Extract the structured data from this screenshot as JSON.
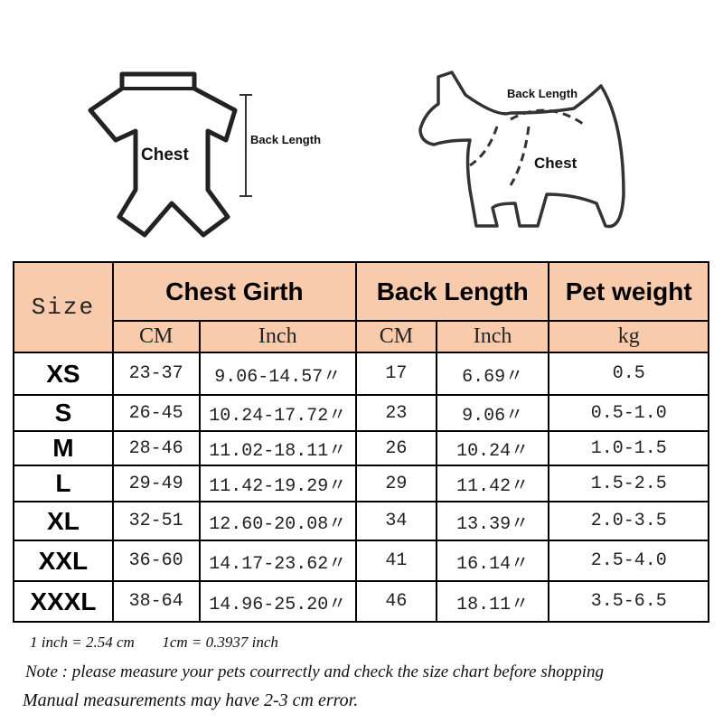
{
  "diagrams": {
    "garment": {
      "chest_label": "Chest",
      "back_length_label": "Back Length"
    },
    "dog": {
      "chest_label": "Chest",
      "back_length_label": "Back Length"
    }
  },
  "table": {
    "headers": {
      "size": "Size",
      "chest_girth": "Chest Girth",
      "back_length": "Back Length",
      "pet_weight": "Pet weight"
    },
    "units": {
      "chest_cm": "CM",
      "chest_inch": "Inch",
      "back_cm": "CM",
      "back_inch": "Inch",
      "weight": "kg"
    },
    "rows": [
      {
        "size": "XS",
        "chest_cm": "23-37",
        "chest_inch": "9.06-14.57〃",
        "back_cm": "17",
        "back_inch": "6.69〃",
        "weight": "0.5"
      },
      {
        "size": "S",
        "chest_cm": "26-45",
        "chest_inch": "10.24-17.72〃",
        "back_cm": "23",
        "back_inch": "9.06〃",
        "weight": "0.5-1.0"
      },
      {
        "size": "M",
        "chest_cm": "28-46",
        "chest_inch": "11.02-18.11〃",
        "back_cm": "26",
        "back_inch": "10.24〃",
        "weight": "1.0-1.5"
      },
      {
        "size": "L",
        "chest_cm": "29-49",
        "chest_inch": "11.42-19.29〃",
        "back_cm": "29",
        "back_inch": "11.42〃",
        "weight": "1.5-2.5"
      },
      {
        "size": "XL",
        "chest_cm": "32-51",
        "chest_inch": "12.60-20.08〃",
        "back_cm": "34",
        "back_inch": "13.39〃",
        "weight": "2.0-3.5"
      },
      {
        "size": "XXL",
        "chest_cm": "36-60",
        "chest_inch": "14.17-23.62〃",
        "back_cm": "41",
        "back_inch": "16.14〃",
        "weight": "2.5-4.0"
      },
      {
        "size": "XXXL",
        "chest_cm": "38-64",
        "chest_inch": "14.96-25.20〃",
        "back_cm": "46",
        "back_inch": "18.11〃",
        "weight": "3.5-6.5"
      }
    ]
  },
  "notes": {
    "conversion_inch": "1 inch = 2.54 cm",
    "conversion_cm": "1cm = 0.3937 inch",
    "note": "Note : please measure your pets courrectly and check the size chart before shopping",
    "error": "Manual measurements may have 2-3 cm error."
  },
  "colors": {
    "header_bg": "#f8cbad",
    "border": "#000000"
  }
}
